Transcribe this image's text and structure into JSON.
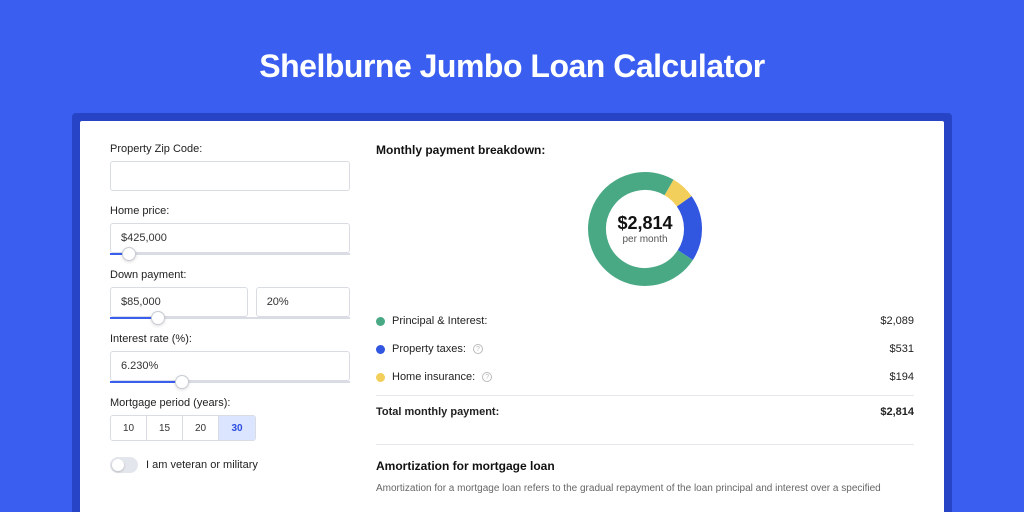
{
  "hero": {
    "title": "Shelburne Jumbo Loan Calculator"
  },
  "form": {
    "zip": {
      "label": "Property Zip Code:",
      "value": ""
    },
    "home_price": {
      "label": "Home price:",
      "value": "$425,000",
      "slider_pct": 8
    },
    "down_payment": {
      "label": "Down payment:",
      "amount": "$85,000",
      "percent": "20%",
      "slider_pct": 20
    },
    "interest": {
      "label": "Interest rate (%):",
      "value": "6.230%",
      "slider_pct": 30
    },
    "period": {
      "label": "Mortgage period (years):",
      "options": [
        "10",
        "15",
        "20",
        "30"
      ],
      "active_index": 3
    },
    "veteran": {
      "label": "I am veteran or military",
      "checked": false
    }
  },
  "breakdown": {
    "title": "Monthly payment breakdown:",
    "donut": {
      "center_amount": "$2,814",
      "center_sub": "per month",
      "radius": 58,
      "thickness": 18,
      "slices": [
        {
          "key": "principal",
          "value": 2089,
          "pct": 74.2,
          "color": "#4aa985"
        },
        {
          "key": "taxes",
          "value": 531,
          "pct": 18.9,
          "color": "#3156e0"
        },
        {
          "key": "insurance",
          "value": 194,
          "pct": 6.9,
          "color": "#f2cf5b"
        }
      ]
    },
    "rows": [
      {
        "label": "Principal & Interest:",
        "value": "$2,089",
        "color": "#4aa985",
        "info": false
      },
      {
        "label": "Property taxes:",
        "value": "$531",
        "color": "#3156e0",
        "info": true
      },
      {
        "label": "Home insurance:",
        "value": "$194",
        "color": "#f2cf5b",
        "info": true
      }
    ],
    "total": {
      "label": "Total monthly payment:",
      "value": "$2,814"
    }
  },
  "amortization": {
    "title": "Amortization for mortgage loan",
    "text": "Amortization for a mortgage loan refers to the gradual repayment of the loan principal and interest over a specified"
  }
}
